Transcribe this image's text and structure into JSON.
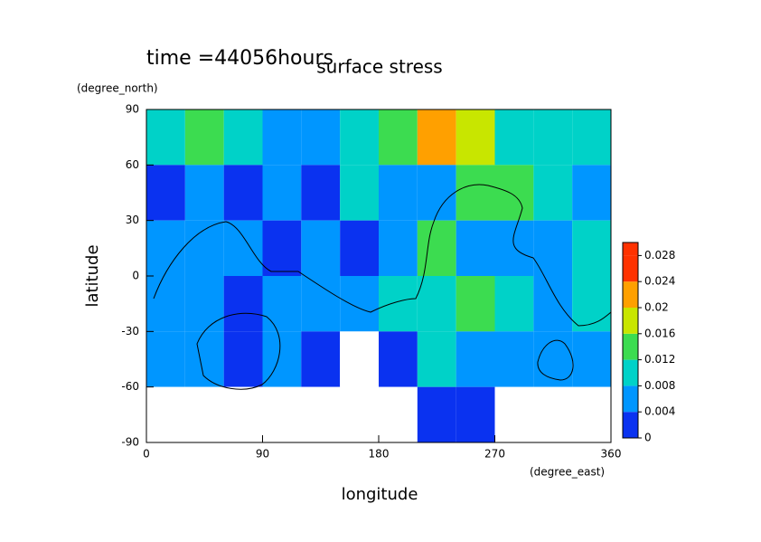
{
  "chart_data": {
    "type": "contour",
    "title": "surface stress",
    "subtitle": "time =44056hours",
    "x_label": "longitude",
    "y_label": "latitude",
    "x_unit": "(degree_east)",
    "y_unit": "(degree_north)",
    "xlim": [
      0,
      360
    ],
    "xticks": [
      0,
      90,
      180,
      270,
      360
    ],
    "ylim": [
      -90,
      90
    ],
    "yticks": [
      -90,
      -60,
      -30,
      0,
      30,
      60,
      90
    ],
    "x": [
      15,
      45,
      75,
      105,
      135,
      165,
      195,
      225,
      255,
      285,
      315,
      345
    ],
    "y": [
      75,
      45,
      15,
      -15,
      -45,
      -75
    ],
    "z": [
      [
        0.01,
        0.012,
        0.008,
        0.006,
        0.006,
        0.008,
        0.012,
        0.02,
        0.018,
        0.01,
        0.008,
        0.01
      ],
      [
        0.002,
        0.004,
        0.003,
        0.006,
        0.002,
        0.008,
        0.006,
        0.004,
        0.012,
        0.014,
        0.008,
        0.006
      ],
      [
        0.004,
        0.004,
        0.006,
        0.002,
        0.004,
        0.002,
        0.006,
        0.014,
        0.006,
        0.004,
        0.006,
        0.008
      ],
      [
        0.006,
        0.004,
        0.002,
        0.004,
        0.006,
        0.004,
        0.008,
        0.01,
        0.012,
        0.008,
        0.006,
        0.01
      ],
      [
        0.004,
        0.006,
        0.002,
        0.004,
        0.002,
        0,
        0.002,
        0.008,
        0.006,
        0.006,
        0.004,
        0.006
      ],
      [
        0,
        0,
        0,
        0,
        0,
        0,
        0,
        0.002,
        0.002,
        0,
        0,
        0
      ]
    ],
    "zlim": [
      0,
      0.03
    ],
    "zticks": [
      0,
      0.004,
      0.008,
      0.012,
      0.016,
      0.02,
      0.024,
      0.028
    ],
    "colors": [
      "#ffffff",
      "#0a32f0",
      "#0096ff",
      "#00d2c8",
      "#3cdc50",
      "#c8e600",
      "#ffa000",
      "#ff3200"
    ]
  }
}
